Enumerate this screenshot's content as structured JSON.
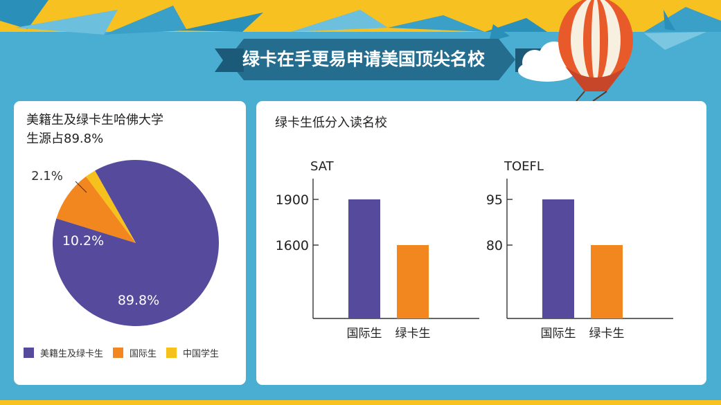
{
  "title": "绿卡在手更易申请美国顶尖名校",
  "colors": {
    "background": "#4aaed3",
    "purple": "#554a9c",
    "orange": "#f3871f",
    "yellow": "#f6c11d",
    "banner": "#246d8f"
  },
  "pie_panel": {
    "heading_line1": "美籍生及绿卡生哈佛大学",
    "heading_line2": "生源占89.8%"
  },
  "bar_panel": {
    "heading": "绿卡生低分入读名校"
  },
  "chart_data": [
    {
      "type": "pie",
      "title": "美籍生及绿卡生哈佛大学生源占89.8%",
      "slices": [
        {
          "label": "美籍生及绿卡生",
          "value": 89.8,
          "display": "89.8%",
          "color": "#554a9c"
        },
        {
          "label": "国际生",
          "value": 10.2,
          "display": "10.2%",
          "color": "#f3871f"
        },
        {
          "label": "中国学生",
          "value": 2.1,
          "display": "2.1%",
          "color": "#f6c11d"
        }
      ],
      "legend": [
        "美籍生及绿卡生",
        "国际生",
        "中国学生"
      ],
      "legend_position": "bottom"
    },
    {
      "type": "bar",
      "title": "SAT",
      "categories": [
        "国际生",
        "绿卡生"
      ],
      "values": [
        1900,
        1600
      ],
      "colors": [
        "#554a9c",
        "#f3871f"
      ],
      "yticks": [
        "1900",
        "1600"
      ]
    },
    {
      "type": "bar",
      "title": "TOEFL",
      "categories": [
        "国际生",
        "绿卡生"
      ],
      "values": [
        95,
        80
      ],
      "colors": [
        "#554a9c",
        "#f3871f"
      ],
      "yticks": [
        "95",
        "80"
      ]
    }
  ]
}
